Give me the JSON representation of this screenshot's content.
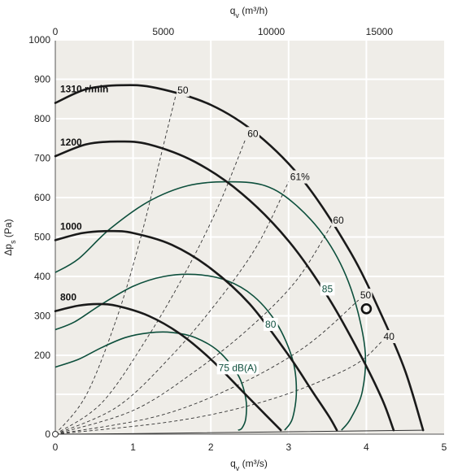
{
  "chart_data": {
    "type": "line",
    "title": "",
    "xlabel": "q",
    "xlabel_sub": "v",
    "xlabel_unit": " (m³/s)",
    "x2label": "q",
    "x2label_sub": "v",
    "x2label_unit": " (m³/h)",
    "ylabel": "Δp",
    "ylabel_sub": "s",
    "ylabel_unit": " (Pa)",
    "xlim": [
      0,
      5
    ],
    "ylim": [
      0,
      1000
    ],
    "x_ticks": [
      "0",
      "1",
      "2",
      "3",
      "4",
      "5"
    ],
    "x2_ticks": [
      "0",
      "5000",
      "10000",
      "15000"
    ],
    "x2_tick_values": [
      0,
      5000,
      10000,
      15000
    ],
    "y_ticks": [
      "0",
      "200",
      "300",
      "400",
      "500",
      "600",
      "700",
      "800",
      "900",
      "1000"
    ],
    "y_tick_values": [
      0,
      200,
      300,
      400,
      500,
      600,
      700,
      800,
      900,
      1000
    ],
    "grid": true,
    "colors": {
      "background": "#efede8",
      "grid": "#ffffff",
      "speed_line": "#1a1a1a",
      "noise_line": "#0d4f3c",
      "efficiency_line": "#333333"
    },
    "speed_curves": [
      {
        "label": "1310 r/min",
        "x": [
          0,
          0.4,
          0.85,
          1.3,
          2.0,
          2.6,
          3.2,
          3.8,
          4.2,
          4.5,
          4.73
        ],
        "y": [
          840,
          875,
          885,
          878,
          835,
          760,
          640,
          460,
          300,
          160,
          10
        ]
      },
      {
        "label": "1200",
        "x": [
          0,
          0.4,
          0.8,
          1.2,
          1.8,
          2.4,
          3.0,
          3.5,
          3.9,
          4.2,
          4.35
        ],
        "y": [
          705,
          735,
          742,
          735,
          690,
          610,
          490,
          350,
          210,
          90,
          10
        ]
      },
      {
        "label": "1000",
        "x": [
          0,
          0.35,
          0.7,
          1.0,
          1.5,
          2.0,
          2.5,
          3.0,
          3.3,
          3.52,
          3.62
        ],
        "y": [
          492,
          510,
          515,
          510,
          480,
          420,
          330,
          200,
          110,
          45,
          10
        ]
      },
      {
        "label": "800",
        "x": [
          0,
          0.3,
          0.55,
          0.8,
          1.2,
          1.6,
          2.0,
          2.4,
          2.7,
          2.9
        ],
        "y": [
          312,
          326,
          330,
          325,
          300,
          255,
          190,
          110,
          50,
          10
        ]
      }
    ],
    "noise_curves": [
      {
        "label": "75 dB(A)",
        "x": [
          0,
          0.3,
          0.6,
          0.9,
          1.2,
          1.5,
          1.8,
          2.1,
          2.35,
          2.45,
          2.45,
          2.4,
          2.35
        ],
        "y": [
          170,
          190,
          220,
          245,
          257,
          258,
          245,
          210,
          150,
          90,
          40,
          15,
          10
        ]
      },
      {
        "label": "80",
        "x": [
          0,
          0.25,
          0.6,
          1.0,
          1.4,
          1.8,
          2.2,
          2.55,
          2.85,
          3.05,
          3.1,
          3.05,
          2.95
        ],
        "y": [
          265,
          285,
          330,
          375,
          400,
          405,
          390,
          350,
          280,
          190,
          110,
          40,
          10
        ]
      },
      {
        "label": "85",
        "x": [
          0,
          0.3,
          0.7,
          1.2,
          1.7,
          2.2,
          2.7,
          3.1,
          3.5,
          3.8,
          3.98,
          3.95,
          3.8,
          3.68
        ],
        "y": [
          410,
          445,
          520,
          590,
          630,
          640,
          630,
          580,
          490,
          370,
          220,
          110,
          40,
          10
        ]
      }
    ],
    "efficiency_curves": [
      {
        "label": "50",
        "x": [
          0,
          0.4,
          0.8,
          1.1,
          1.35,
          1.55
        ],
        "y": [
          0,
          100,
          300,
          500,
          700,
          860
        ]
      },
      {
        "label": "60",
        "x": [
          0,
          0.6,
          1.2,
          1.7,
          2.1,
          2.45
        ],
        "y": [
          0,
          80,
          250,
          420,
          580,
          750
        ]
      },
      {
        "label": "61%",
        "x": [
          0,
          0.8,
          1.5,
          2.1,
          2.6,
          3.0
        ],
        "y": [
          0,
          70,
          200,
          340,
          480,
          640
        ]
      },
      {
        "label": "60",
        "x": [
          0,
          1.0,
          1.8,
          2.5,
          3.1,
          3.55
        ],
        "y": [
          0,
          60,
          160,
          270,
          390,
          530
        ]
      },
      {
        "label": "50",
        "x": [
          0,
          1.3,
          2.3,
          3.2,
          3.9
        ],
        "y": [
          0,
          45,
          120,
          220,
          340
        ]
      },
      {
        "label": "40",
        "x": [
          0,
          1.6,
          2.8,
          3.8,
          4.2
        ],
        "y": [
          0,
          35,
          90,
          170,
          235
        ]
      }
    ],
    "operating_point": {
      "x": 4.0,
      "y": 318
    }
  }
}
